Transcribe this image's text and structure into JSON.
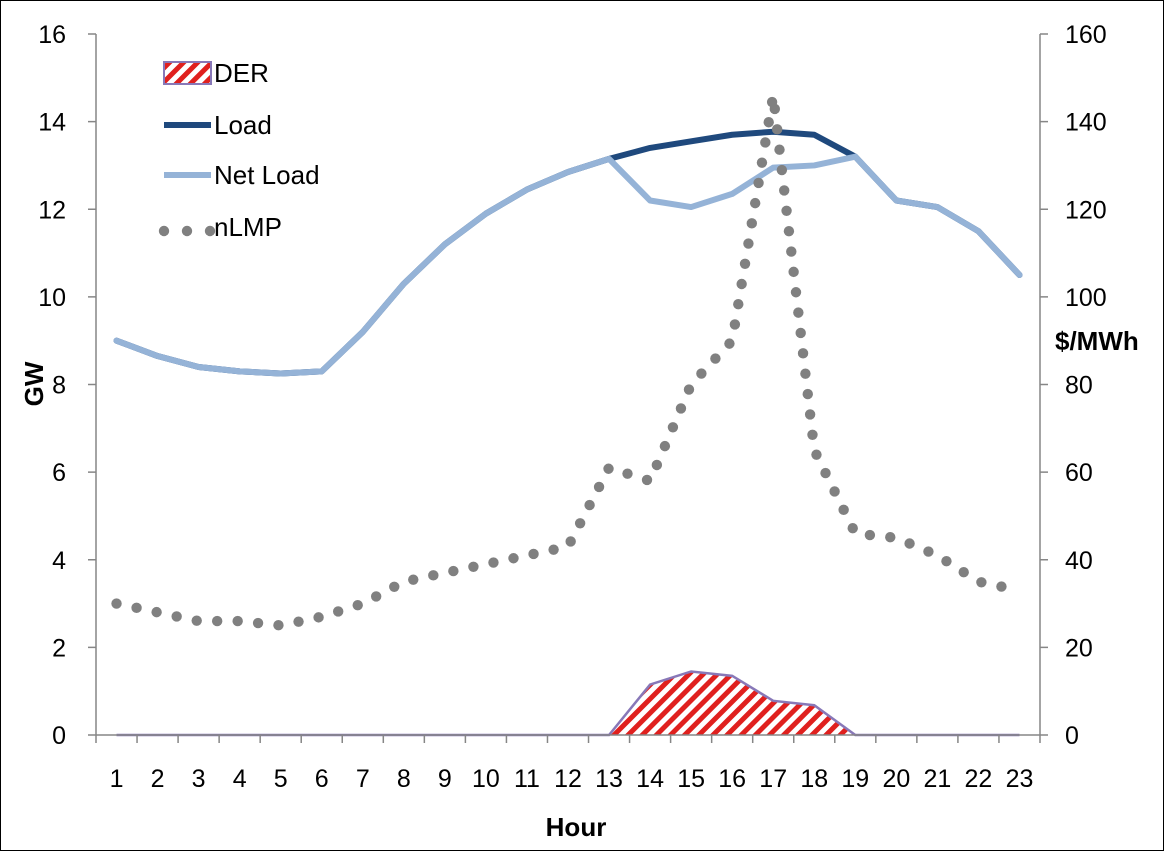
{
  "chart_data": {
    "type": "line",
    "title": "",
    "xlabel": "Hour",
    "ylabel_left": "GW",
    "ylabel_right": "$/MWh",
    "x": [
      1,
      2,
      3,
      4,
      5,
      6,
      7,
      8,
      9,
      10,
      11,
      12,
      13,
      14,
      15,
      16,
      17,
      18,
      19,
      20,
      21,
      22,
      23
    ],
    "ylim_left": [
      0,
      16
    ],
    "ylim_right": [
      0,
      160
    ],
    "yticks_left": [
      0,
      2,
      4,
      6,
      8,
      10,
      12,
      14,
      16
    ],
    "yticks_right": [
      0,
      20,
      40,
      60,
      80,
      100,
      120,
      140,
      160
    ],
    "grid": false,
    "legend_position": "top-left",
    "series": [
      {
        "name": "DER",
        "type": "area",
        "axis": "left",
        "color": "#e0201e",
        "pattern": "diagonal-hatch",
        "edge_color": "#8878b8",
        "values": [
          0,
          0,
          0,
          0,
          0,
          0,
          0,
          0,
          0,
          0,
          0,
          0,
          0,
          1.15,
          1.45,
          1.35,
          0.78,
          0.68,
          0,
          0,
          0,
          0,
          0
        ]
      },
      {
        "name": "Load",
        "type": "line",
        "axis": "left",
        "color": "#1f497d",
        "values": [
          9.0,
          8.65,
          8.4,
          8.3,
          8.25,
          8.3,
          9.2,
          10.3,
          11.2,
          11.9,
          12.45,
          12.85,
          13.15,
          13.4,
          13.55,
          13.7,
          13.77,
          13.7,
          13.2,
          12.2,
          12.05,
          11.5,
          10.5
        ]
      },
      {
        "name": "Net Load",
        "type": "line",
        "axis": "left",
        "color": "#95b3d7",
        "values": [
          9.0,
          8.65,
          8.4,
          8.3,
          8.25,
          8.3,
          9.2,
          10.3,
          11.2,
          11.9,
          12.45,
          12.85,
          13.15,
          12.2,
          12.05,
          12.35,
          12.95,
          13.0,
          13.2,
          12.2,
          12.05,
          11.5,
          10.5
        ]
      },
      {
        "name": "nLMP",
        "type": "line",
        "style": "dotted",
        "axis": "right",
        "color": "#808080",
        "values": [
          30,
          28,
          26,
          26,
          25,
          27,
          30,
          35,
          37,
          39,
          41,
          43,
          61,
          58,
          80,
          90,
          146,
          65,
          46,
          45,
          41,
          35,
          33
        ]
      }
    ]
  }
}
